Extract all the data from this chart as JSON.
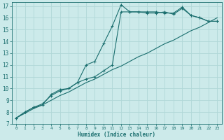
{
  "xlabel": "Humidex (Indice chaleur)",
  "bg_color": "#cceaea",
  "grid_color": "#b0d8d8",
  "line_color": "#1a6e6e",
  "xlim": [
    -0.5,
    23.5
  ],
  "ylim": [
    7,
    17.3
  ],
  "xticks": [
    0,
    1,
    2,
    3,
    4,
    5,
    6,
    7,
    8,
    9,
    10,
    11,
    12,
    13,
    14,
    15,
    16,
    17,
    18,
    19,
    20,
    21,
    22,
    23
  ],
  "yticks": [
    7,
    8,
    9,
    10,
    11,
    12,
    13,
    14,
    15,
    16,
    17
  ],
  "line1_x": [
    0,
    1,
    2,
    3,
    4,
    5,
    6,
    7,
    8,
    9,
    10,
    11,
    12,
    13,
    14,
    15,
    16,
    17,
    18,
    19,
    20,
    21,
    22,
    23
  ],
  "line1_y": [
    7.5,
    7.9,
    8.3,
    8.6,
    9.0,
    9.4,
    9.7,
    10.1,
    10.5,
    10.8,
    11.2,
    11.6,
    11.9,
    12.3,
    12.7,
    13.0,
    13.4,
    13.8,
    14.1,
    14.5,
    14.9,
    15.2,
    15.6,
    16.0
  ],
  "line2_x": [
    0,
    1,
    2,
    3,
    4,
    5,
    6,
    7,
    8,
    9,
    10,
    11,
    12,
    13,
    14,
    15,
    16,
    17,
    18,
    19,
    20,
    21,
    22,
    23
  ],
  "line2_y": [
    7.5,
    8.0,
    8.4,
    8.6,
    9.5,
    9.9,
    10.0,
    10.5,
    10.8,
    11.0,
    11.5,
    12.0,
    16.5,
    16.5,
    16.5,
    16.4,
    16.4,
    16.5,
    16.3,
    16.8,
    16.2,
    16.0,
    15.7,
    15.7
  ],
  "line3_x": [
    0,
    1,
    2,
    3,
    4,
    5,
    6,
    7,
    8,
    9,
    10,
    11,
    12,
    13,
    14,
    15,
    16,
    17,
    18,
    19,
    20,
    21,
    22,
    23
  ],
  "line3_y": [
    7.5,
    8.0,
    8.4,
    8.7,
    9.4,
    9.8,
    10.0,
    10.5,
    12.0,
    12.3,
    13.8,
    15.3,
    17.1,
    16.5,
    16.5,
    16.5,
    16.5,
    16.4,
    16.4,
    16.9,
    16.2,
    16.0,
    15.7,
    15.7
  ]
}
